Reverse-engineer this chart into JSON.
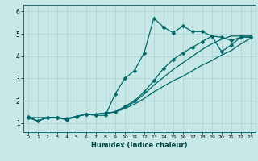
{
  "title": "",
  "xlabel": "Humidex (Indice chaleur)",
  "bg_color": "#c8e8e8",
  "grid_color": "#b0d8d8",
  "line_color": "#006868",
  "xlim": [
    -0.5,
    23.5
  ],
  "ylim": [
    0.6,
    6.3
  ],
  "yticks": [
    1,
    2,
    3,
    4,
    5,
    6
  ],
  "xticks": [
    0,
    1,
    2,
    3,
    4,
    5,
    6,
    7,
    8,
    9,
    10,
    11,
    12,
    13,
    14,
    15,
    16,
    17,
    18,
    19,
    20,
    21,
    22,
    23
  ],
  "line1_x": [
    0,
    1,
    2,
    3,
    4,
    5,
    6,
    7,
    8,
    9,
    10,
    11,
    12,
    13,
    14,
    15,
    16,
    17,
    18,
    19,
    20,
    21,
    22,
    23
  ],
  "line1_y": [
    1.3,
    1.1,
    1.25,
    1.25,
    1.15,
    1.3,
    1.4,
    1.35,
    1.35,
    2.3,
    3.0,
    3.35,
    4.15,
    5.7,
    5.3,
    5.05,
    5.35,
    5.1,
    5.1,
    4.9,
    4.2,
    4.5,
    4.85,
    4.85
  ],
  "line2_x": [
    0,
    1,
    2,
    3,
    4,
    5,
    6,
    7,
    8,
    9,
    10,
    11,
    12,
    13,
    14,
    15,
    16,
    17,
    18,
    19,
    20,
    21,
    22,
    23
  ],
  "line2_y": [
    1.25,
    1.1,
    1.25,
    1.25,
    1.2,
    1.3,
    1.4,
    1.4,
    1.45,
    1.5,
    1.65,
    1.85,
    2.1,
    2.4,
    2.65,
    2.9,
    3.1,
    3.35,
    3.6,
    3.8,
    4.05,
    4.25,
    4.55,
    4.8
  ],
  "line3_x": [
    0,
    1,
    2,
    3,
    4,
    5,
    6,
    7,
    8,
    9,
    10,
    11,
    12,
    13,
    14,
    15,
    16,
    17,
    18,
    19,
    20,
    21,
    22,
    23
  ],
  "line3_y": [
    1.25,
    1.1,
    1.25,
    1.25,
    1.2,
    1.3,
    1.4,
    1.4,
    1.45,
    1.5,
    1.7,
    1.95,
    2.3,
    2.7,
    3.05,
    3.4,
    3.7,
    4.0,
    4.3,
    4.55,
    4.75,
    4.9,
    4.9,
    4.9
  ],
  "line4_x": [
    0,
    2,
    3,
    4,
    5,
    6,
    7,
    8,
    9,
    10,
    11,
    12,
    13,
    14,
    15,
    16,
    17,
    18,
    19,
    20,
    21,
    22,
    23
  ],
  "line4_y": [
    1.25,
    1.25,
    1.25,
    1.2,
    1.3,
    1.4,
    1.4,
    1.45,
    1.5,
    1.75,
    2.0,
    2.4,
    2.9,
    3.45,
    3.85,
    4.15,
    4.4,
    4.65,
    4.9,
    4.85,
    4.7,
    4.85,
    4.85
  ]
}
